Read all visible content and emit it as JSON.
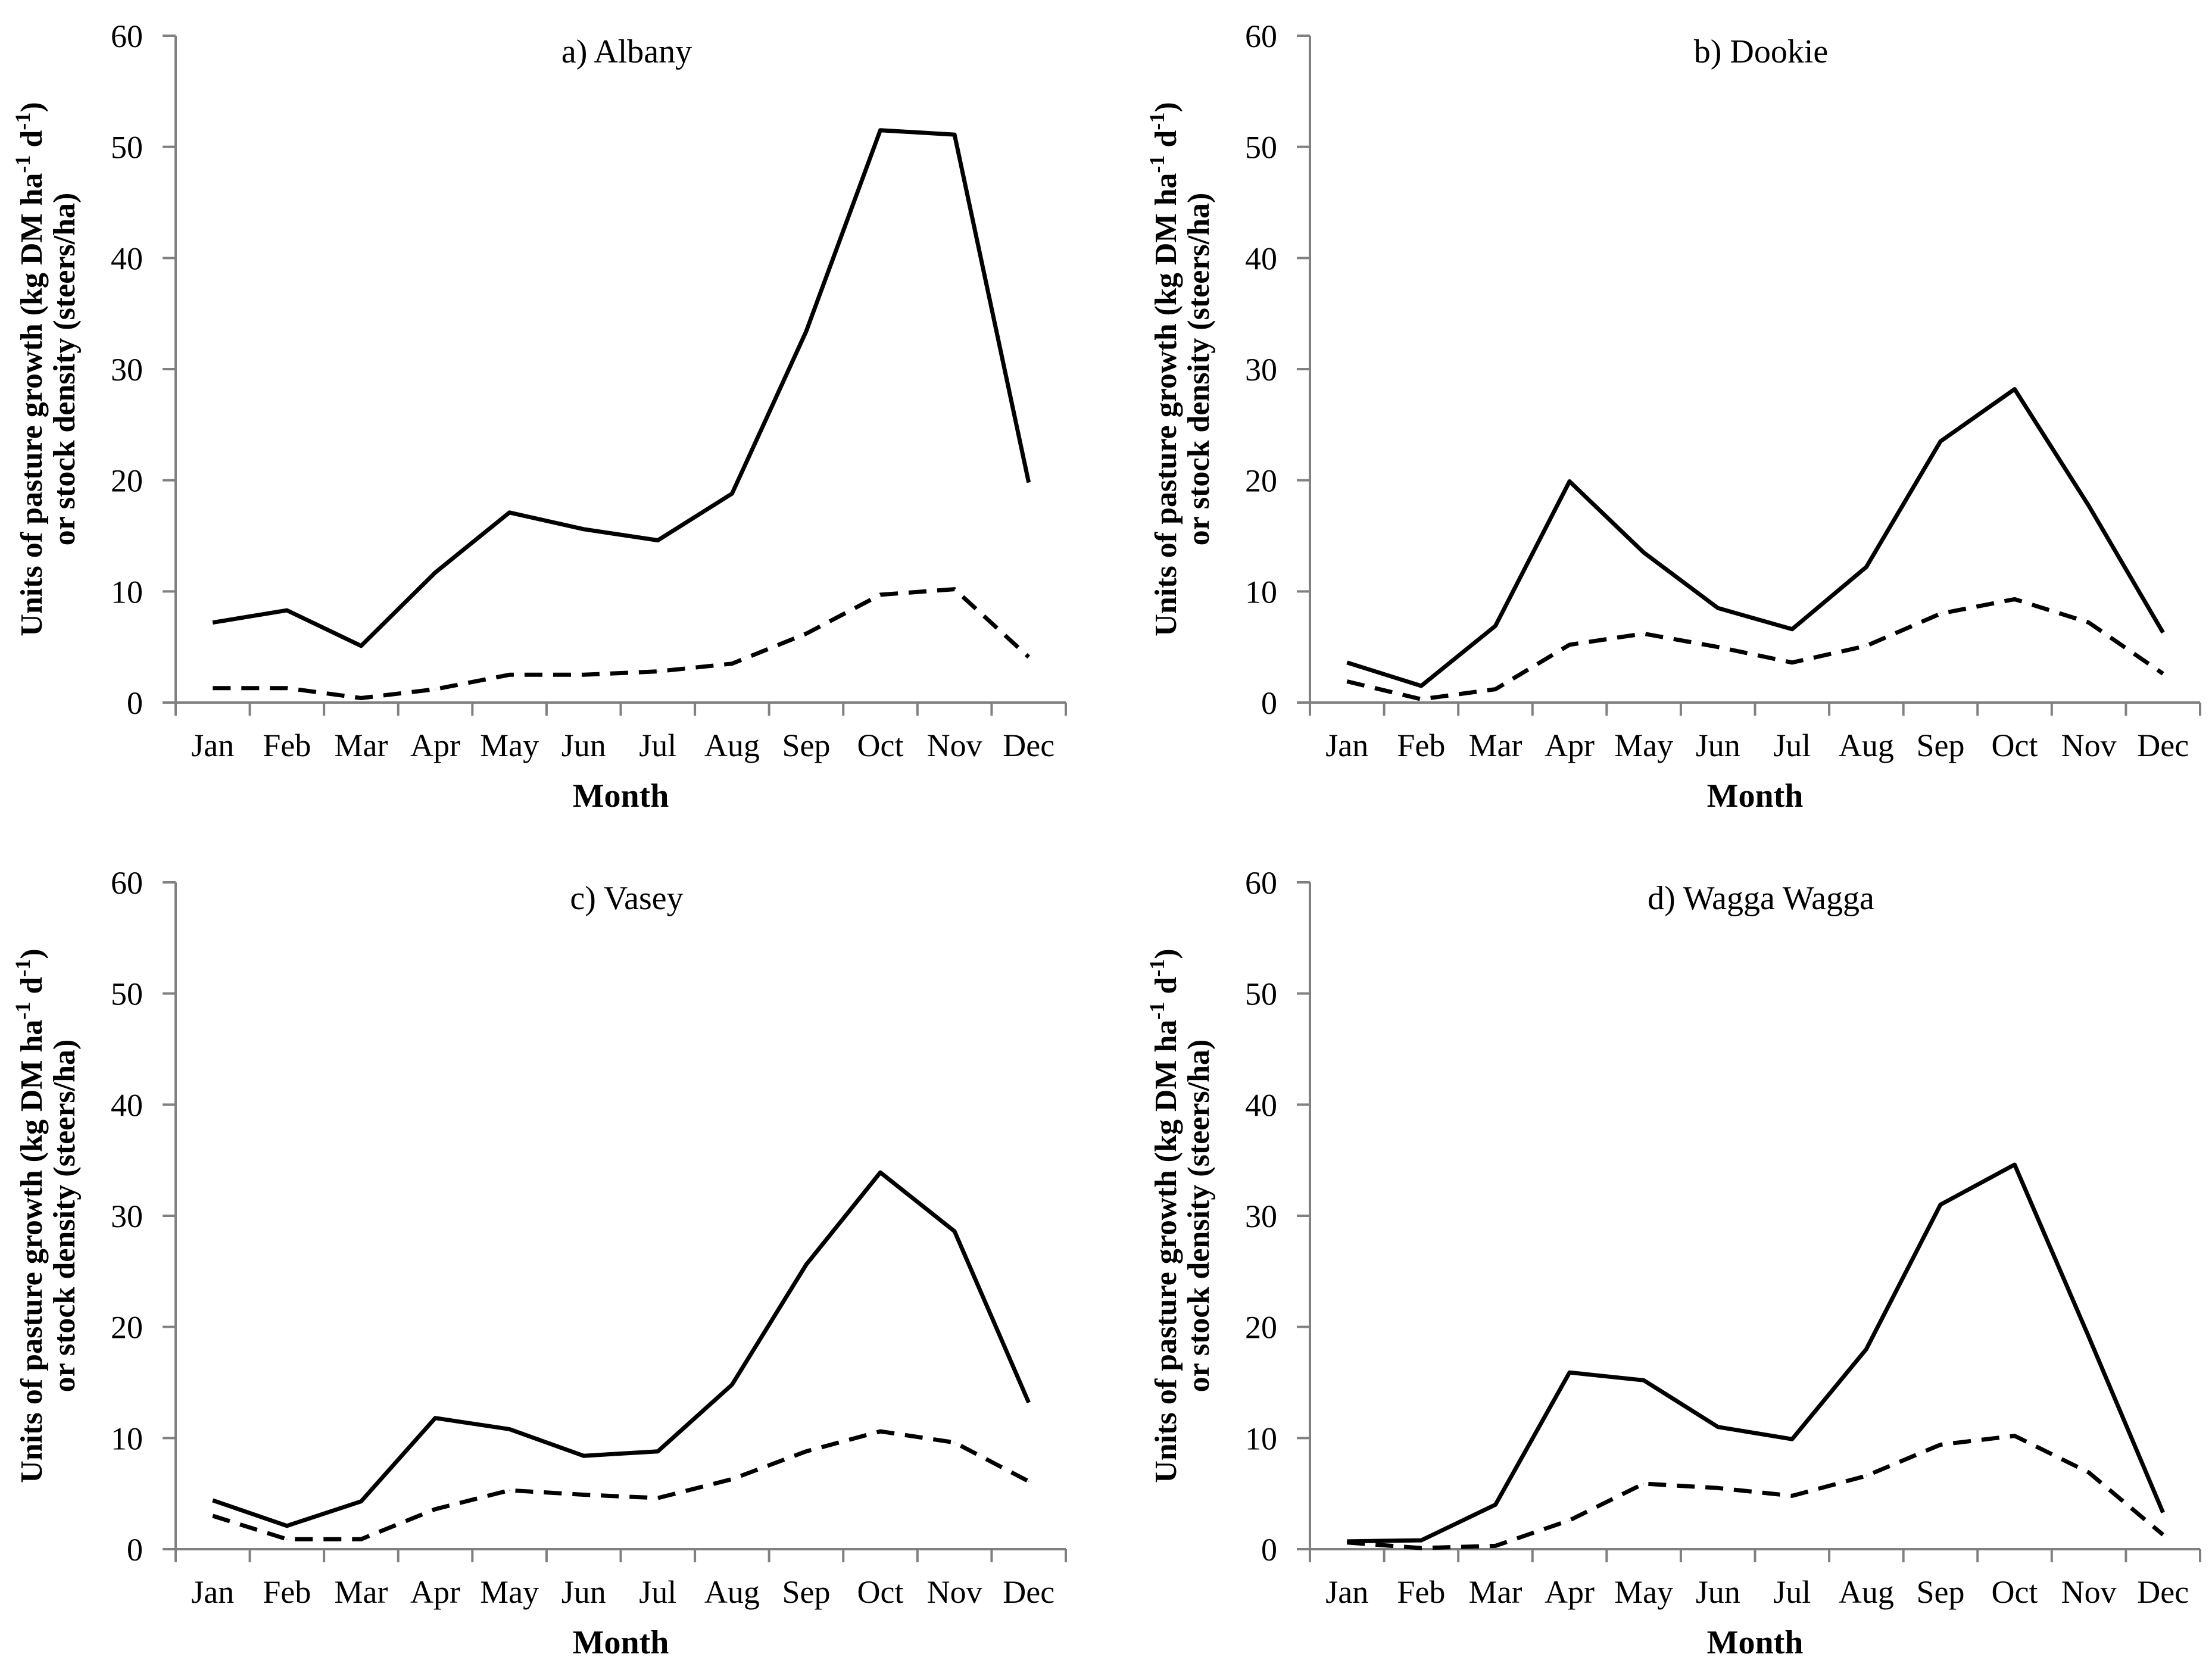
{
  "chart_data": [
    {
      "type": "line",
      "title": "a) Albany",
      "xlabel": "Month",
      "ylabel": [
        "Units of pasture growth (kg DM ha",
        "-1",
        " d",
        "-1",
        ")",
        "or stock density (steers/ha)"
      ],
      "ylim": [
        0,
        60
      ],
      "yticks": [
        "0",
        "10",
        "20",
        "30",
        "40",
        "50",
        "60"
      ],
      "categories": [
        "Jan",
        "Feb",
        "Mar",
        "Apr",
        "May",
        "Jun",
        "Jul",
        "Aug",
        "Sep",
        "Oct",
        "Nov",
        "Dec"
      ],
      "series": [
        {
          "name": "pasture growth",
          "style": "solid",
          "values": [
            7.2,
            8.3,
            5.1,
            11.7,
            17.1,
            15.6,
            14.6,
            18.8,
            33.4,
            51.5,
            51.1,
            19.8
          ]
        },
        {
          "name": "stock density",
          "style": "dashed",
          "values": [
            1.3,
            1.3,
            0.4,
            1.2,
            2.5,
            2.5,
            2.8,
            3.5,
            6.2,
            9.7,
            10.2,
            4.1
          ]
        }
      ]
    },
    {
      "type": "line",
      "title": "b) Dookie",
      "xlabel": "Month",
      "ylabel": [
        "Units of pasture growth (kg DM ha",
        "-1",
        " d",
        "-1",
        ")",
        "or stock density (steers/ha)"
      ],
      "ylim": [
        0,
        60
      ],
      "yticks": [
        "0",
        "10",
        "20",
        "30",
        "40",
        "50",
        "60"
      ],
      "categories": [
        "Jan",
        "Feb",
        "Mar",
        "Apr",
        "May",
        "Jun",
        "Jul",
        "Aug",
        "Sep",
        "Oct",
        "Nov",
        "Dec"
      ],
      "series": [
        {
          "name": "pasture growth",
          "style": "solid",
          "values": [
            3.6,
            1.5,
            6.9,
            19.9,
            13.5,
            8.5,
            6.6,
            12.2,
            23.5,
            28.2,
            17.7,
            6.3
          ]
        },
        {
          "name": "stock density",
          "style": "dashed",
          "values": [
            1.9,
            0.3,
            1.2,
            5.2,
            6.2,
            5.0,
            3.6,
            5.1,
            8.0,
            9.3,
            7.2,
            2.6
          ]
        }
      ]
    },
    {
      "type": "line",
      "title": "c) Vasey",
      "xlabel": "Month",
      "ylabel": [
        "Units of pasture growth (kg DM ha",
        "-1",
        " d",
        "-1",
        ")",
        "or stock density (steers/ha)"
      ],
      "ylim": [
        0,
        60
      ],
      "yticks": [
        "0",
        "10",
        "20",
        "30",
        "40",
        "50",
        "60"
      ],
      "categories": [
        "Jan",
        "Feb",
        "Mar",
        "Apr",
        "May",
        "Jun",
        "Jul",
        "Aug",
        "Sep",
        "Oct",
        "Nov",
        "Dec"
      ],
      "series": [
        {
          "name": "pasture growth",
          "style": "solid",
          "values": [
            4.4,
            2.1,
            4.3,
            11.8,
            10.8,
            8.4,
            8.8,
            14.8,
            25.6,
            33.9,
            28.6,
            13.2
          ]
        },
        {
          "name": "stock density",
          "style": "dashed",
          "values": [
            3.0,
            0.9,
            0.9,
            3.6,
            5.3,
            4.9,
            4.6,
            6.3,
            8.8,
            10.6,
            9.6,
            6.1
          ]
        }
      ]
    },
    {
      "type": "line",
      "title": "d) Wagga Wagga",
      "xlabel": "Month",
      "ylabel": [
        "Units of pasture growth (kg DM ha",
        "-1",
        " d",
        "-1",
        ")",
        "or stock density (steers/ha)"
      ],
      "ylim": [
        0,
        60
      ],
      "yticks": [
        "0",
        "10",
        "20",
        "30",
        "40",
        "50",
        "60"
      ],
      "categories": [
        "Jan",
        "Feb",
        "Mar",
        "Apr",
        "May",
        "Jun",
        "Jul",
        "Aug",
        "Sep",
        "Oct",
        "Nov",
        "Dec"
      ],
      "series": [
        {
          "name": "pasture growth",
          "style": "solid",
          "values": [
            0.7,
            0.8,
            4.0,
            15.9,
            15.2,
            11.0,
            9.9,
            18.0,
            31.0,
            34.6,
            19.1,
            3.3
          ]
        },
        {
          "name": "stock density",
          "style": "dashed",
          "values": [
            0.6,
            0.1,
            0.3,
            2.6,
            5.9,
            5.5,
            4.8,
            6.6,
            9.4,
            10.2,
            6.9,
            1.3
          ]
        }
      ]
    }
  ]
}
